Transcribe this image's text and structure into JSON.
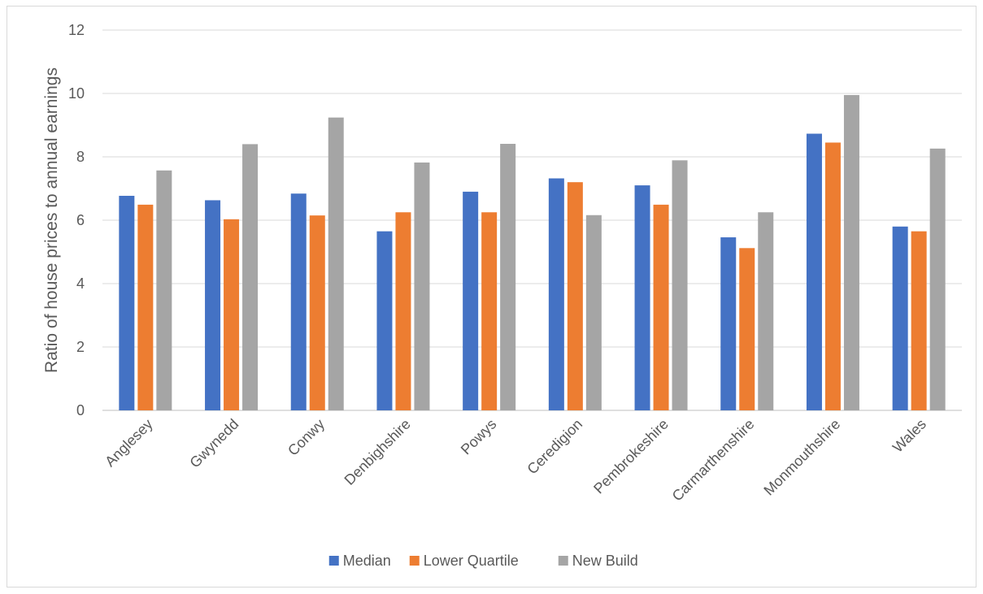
{
  "chart_data": {
    "type": "bar",
    "title": "",
    "xlabel": "",
    "ylabel": "Ratio of house prices to annual earnings",
    "ylim": [
      0,
      12
    ],
    "yticks": [
      0,
      2,
      4,
      6,
      8,
      10,
      12
    ],
    "grid": true,
    "legend_position": "bottom",
    "categories": [
      "Anglesey",
      "Gwynedd",
      "Conwy",
      "Denbighshire",
      "Powys",
      "Ceredigion",
      "Pembrokeshire",
      "Carmarthenshire",
      "Monmouthshire",
      "Wales"
    ],
    "series": [
      {
        "name": "Median",
        "color": "#4472C4",
        "values": [
          6.77,
          6.63,
          6.84,
          5.65,
          6.9,
          7.32,
          7.1,
          5.46,
          8.73,
          5.8
        ]
      },
      {
        "name": "Lower Quartile",
        "color": "#ED7D31",
        "values": [
          6.49,
          6.03,
          6.15,
          6.25,
          6.25,
          7.2,
          6.49,
          5.12,
          8.45,
          5.65
        ]
      },
      {
        "name": "New Build",
        "color": "#A5A5A5",
        "values": [
          7.57,
          8.4,
          9.24,
          7.82,
          8.41,
          6.16,
          7.89,
          6.25,
          9.95,
          8.26
        ]
      }
    ]
  }
}
